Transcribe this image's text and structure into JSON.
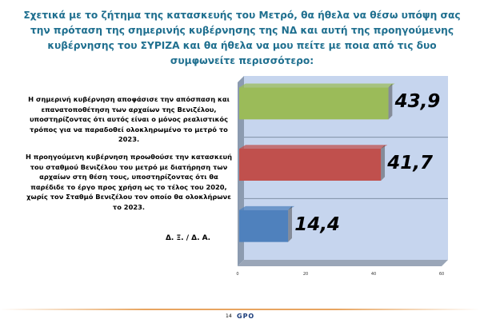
{
  "chart_data": {
    "type": "bar",
    "orientation": "horizontal",
    "title": "Σχετικά με το ζήτημα της κατασκευής του Μετρό, θα ήθελα να θέσω υπόψη σας την πρόταση της σημερινής κυβέρνησης της ΝΔ και αυτή της προηγούμενης κυβέρνησης του ΣΥΡΙΖΑ και θα ήθελα να μου πείτε με ποια από τις δυο συμφωνείτε περισσότερο:",
    "categories": [
      "Η σημερινή κυβέρνηση αποφάσισε την απόσπαση και επανατοποθέτηση των αρχαίων της Βενιζέλου, υποστηρίζοντας ότι αυτός είναι ο μόνος ρεαλιστικός τρόπος για να παραδοθεί ολοκληρωμένο το μετρό το 2023.",
      "Η προηγούμενη κυβέρνηση προωθούσε την κατασκευή του σταθμού Βενιζέλου του μετρό με διατήρηση των αρχαίων στη θέση τους, υποστηρίζοντας ότι θα παρέδιδε το έργο προς χρήση ως το τέλος του 2020, χωρίς τον Σταθμό Βενιζέλου τον οποίο θα ολοκλήρωνε το 2023.",
      "Δ. Ξ. / Δ. Α."
    ],
    "values": [
      43.9,
      41.7,
      14.4
    ],
    "value_labels": [
      "43,9",
      "41,7",
      "14,4"
    ],
    "colors": [
      "#9bbb59",
      "#c0504d",
      "#4f81bd"
    ],
    "xlim": [
      0,
      60
    ],
    "xticks": [
      "0",
      "20",
      "40",
      "60"
    ],
    "grid": true
  },
  "footer": {
    "page": "14",
    "logo": "GPO"
  }
}
